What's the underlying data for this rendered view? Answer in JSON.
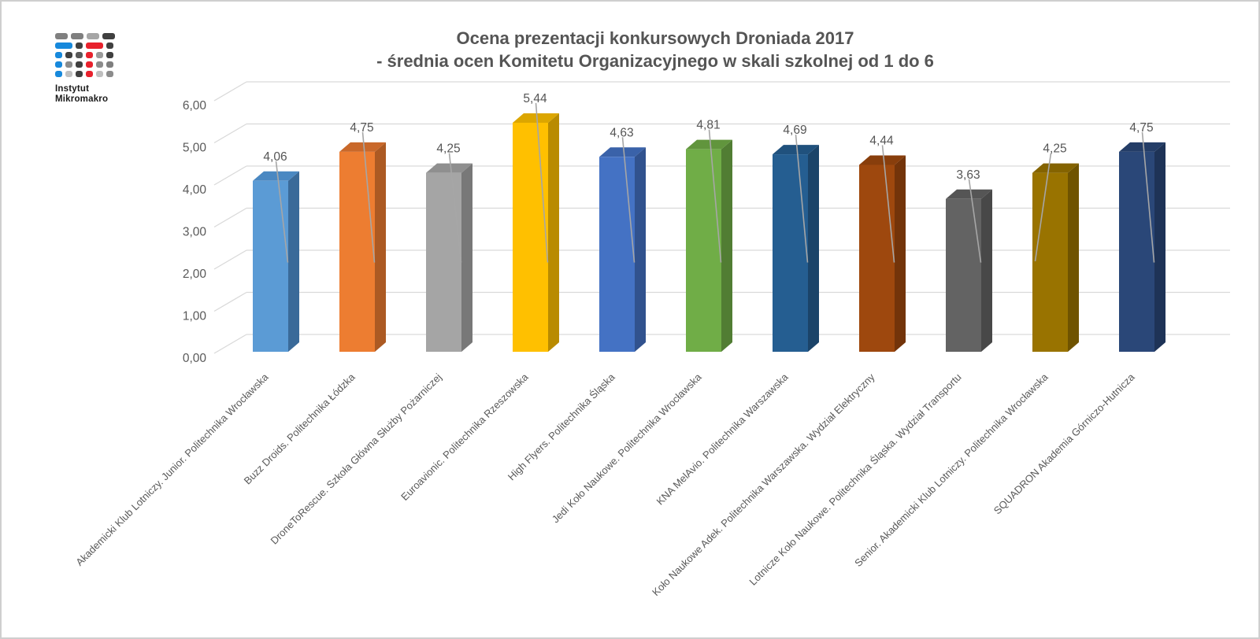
{
  "logo": {
    "line1": "Instytut",
    "line2": "Mikromakro",
    "grid": [
      [
        {
          "w": 16,
          "c": "#808080"
        },
        {
          "w": 16,
          "c": "#7f7f7f"
        },
        {
          "w": 16,
          "c": "#a6a6a6"
        },
        {
          "w": 16,
          "c": "#404040"
        }
      ],
      [
        {
          "w": 22,
          "c": "#1789dc"
        },
        {
          "w": 9,
          "c": "#404040"
        },
        {
          "w": 22,
          "c": "#e8222d"
        },
        {
          "w": 9,
          "c": "#404040"
        }
      ],
      [
        {
          "w": 9,
          "c": "#1789dc"
        },
        {
          "w": 9,
          "c": "#404040"
        },
        {
          "w": 9,
          "c": "#595959"
        },
        {
          "w": 9,
          "c": "#e8222d"
        },
        {
          "w": 9,
          "c": "#9b9b9b"
        },
        {
          "w": 9,
          "c": "#404040"
        }
      ],
      [
        {
          "w": 9,
          "c": "#1789dc"
        },
        {
          "w": 9,
          "c": "#8c8c8c"
        },
        {
          "w": 9,
          "c": "#404040"
        },
        {
          "w": 9,
          "c": "#e8222d"
        },
        {
          "w": 9,
          "c": "#8c8c8c"
        },
        {
          "w": 9,
          "c": "#7f7f7f"
        }
      ],
      [
        {
          "w": 9,
          "c": "#1789dc"
        },
        {
          "w": 9,
          "c": "#c0c0c0"
        },
        {
          "w": 9,
          "c": "#404040"
        },
        {
          "w": 9,
          "c": "#e8222d"
        },
        {
          "w": 9,
          "c": "#bfbfbf"
        },
        {
          "w": 9,
          "c": "#8c8c8c"
        }
      ]
    ]
  },
  "title": {
    "line1": "Ocena prezentacji konkursowych Droniada 2017",
    "line2": "- średnia ocen Komitetu Organizacyjnego w skali szkolnej od 1 do 6"
  },
  "chart_data": {
    "type": "bar",
    "style": "3d-clustered-column",
    "title": "Ocena prezentacji konkursowych Droniada 2017 - średnia ocen Komitetu Organizacyjnego w skali szkolnej od 1 do 6",
    "xlabel": "",
    "ylabel": "",
    "ylim": [
      0,
      6
    ],
    "y_step": 1,
    "grid": true,
    "legend": "none",
    "categories": [
      "Akademicki Klub Lotniczy. Junior. Politechnika Wrocławska",
      "Buzz Droids. Politechnika Łódzka",
      "DroneToRescue. Szkoła Główna Służby Pożarniczej",
      "Euroavionic. Politechnika Rzeszowska",
      "High Flyers. Politechnika Śląska",
      "Jedi Koło Naukowe. Politechnika Wrocławska",
      "KNA MelAvio. Politechnika Warszawska",
      "Koło Naukowe Adek. Politechnika Warszawska. Wydział Elektryczny",
      "Lotnicze Koło Naukowe. Politechnika Śląska. Wydział Transportu",
      "Senior. Akademicki Klub Lotniczy. Politechnika Wrocławska",
      "SQUADRON Akademia Górniczo-Hutnicza"
    ],
    "values": [
      4.06,
      4.75,
      4.25,
      5.44,
      4.63,
      4.81,
      4.69,
      4.44,
      3.63,
      4.25,
      4.75
    ],
    "value_labels": [
      "4,06",
      "4,75",
      "4,25",
      "5,44",
      "4,63",
      "4,81",
      "4,69",
      "4,44",
      "3,63",
      "4,25",
      "4,75"
    ],
    "y_tick_labels": [
      "0,00",
      "1,00",
      "2,00",
      "3,00",
      "4,00",
      "5,00",
      "6,00"
    ],
    "bar_colors": [
      {
        "front": "#5b9bd5",
        "side": "#3a6a99",
        "top": "#4a88c2"
      },
      {
        "front": "#ed7d31",
        "side": "#ac5a23",
        "top": "#c9682a"
      },
      {
        "front": "#a5a5a5",
        "side": "#787878",
        "top": "#8f8f8f"
      },
      {
        "front": "#ffc000",
        "side": "#b98b00",
        "top": "#dca600"
      },
      {
        "front": "#4472c4",
        "side": "#31528e",
        "top": "#3a62a9"
      },
      {
        "front": "#70ad47",
        "side": "#517d33",
        "top": "#61953d"
      },
      {
        "front": "#255e91",
        "side": "#1b4469",
        "top": "#20517d"
      },
      {
        "front": "#9e480e",
        "side": "#73340a",
        "top": "#883e0c"
      },
      {
        "front": "#636363",
        "side": "#484848",
        "top": "#555555"
      },
      {
        "front": "#997300",
        "side": "#6f5300",
        "top": "#846300"
      },
      {
        "front": "#2a4778",
        "side": "#1e3357",
        "top": "#243d67"
      }
    ],
    "grid_color": "#d9d9d9",
    "leader_color": "#a6a6a6",
    "tick_label_color": "#595959",
    "value_label_color": "#555555",
    "category_label_color": "#595959"
  }
}
